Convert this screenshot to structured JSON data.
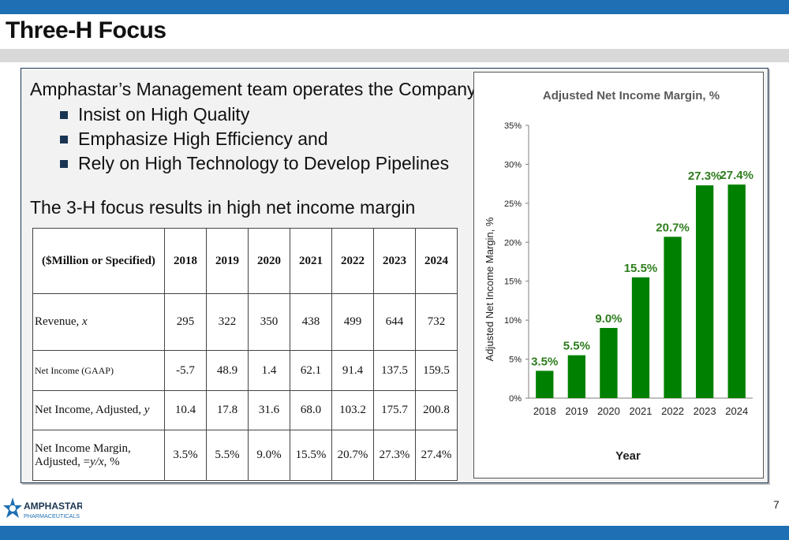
{
  "title": "Three-H Focus",
  "intro": "Amphastar’s Management team operates the Company to:",
  "bullets": [
    "Insist on High Quality",
    "Emphasize High Efficiency and",
    "Rely on High Technology to Develop Pipelines"
  ],
  "subhead": "The 3-H focus results in high net income margin",
  "table": {
    "header_label": "($Million or Specified)",
    "years": [
      "2018",
      "2019",
      "2020",
      "2021",
      "2022",
      "2023",
      "2024"
    ],
    "rows": [
      {
        "label": "Revenue, x",
        "values": [
          "295",
          "322",
          "350",
          "438",
          "499",
          "644",
          "732"
        ]
      },
      {
        "label": "Net Income (GAAP)",
        "values": [
          "-5.7",
          "48.9",
          "1.4",
          "62.1",
          "91.4",
          "137.5",
          "159.5"
        ]
      },
      {
        "label": "Net Income, Adjusted, y",
        "values": [
          "10.4",
          "17.8",
          "31.6",
          "68.0",
          "103.2",
          "175.7",
          "200.8"
        ]
      },
      {
        "label": "Net Income Margin, Adjusted, =y/x, %",
        "values": [
          "3.5%",
          "5.5%",
          "9.0%",
          "15.5%",
          "20.7%",
          "27.3%",
          "27.4%"
        ]
      }
    ]
  },
  "chart_data": {
    "type": "bar",
    "title": "Adjusted Net Income Margin, %",
    "xlabel": "Year",
    "ylabel": "Adjusted Net Income Margin, %",
    "categories": [
      "2018",
      "2019",
      "2020",
      "2021",
      "2022",
      "2023",
      "2024"
    ],
    "values": [
      3.5,
      5.5,
      9.0,
      15.5,
      20.7,
      27.3,
      27.4
    ],
    "data_labels": [
      "3.5%",
      "5.5%",
      "9.0%",
      "15.5%",
      "20.7%",
      "27.3%",
      "27.4%"
    ],
    "ylim": [
      0,
      35
    ],
    "yticks": [
      0,
      5,
      10,
      15,
      20,
      25,
      30,
      35
    ],
    "ytick_labels": [
      "0%",
      "5%",
      "10%",
      "15%",
      "20%",
      "25%",
      "30%",
      "35%"
    ],
    "grid": false,
    "legend": "none",
    "bar_color": "#008000",
    "label_color": "#2e7d1e"
  },
  "logo": {
    "name": "AMPHASTAR",
    "tagline": "PHARMACEUTICALS"
  },
  "page_number": "7",
  "colors": {
    "brand_blue": "#1e6fb3",
    "navy": "#1a3553",
    "panel_bg": "#f2f2f2"
  }
}
